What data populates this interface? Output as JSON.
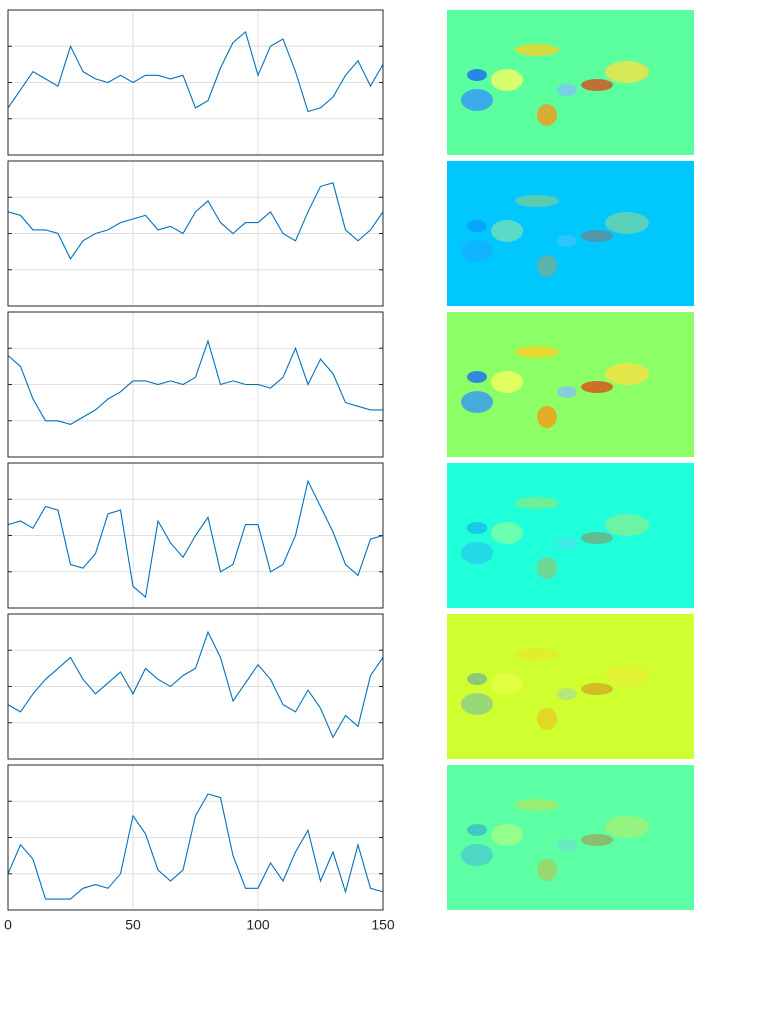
{
  "chart_data": [
    {
      "type": "line",
      "x": [
        0,
        5,
        10,
        15,
        20,
        25,
        30,
        35,
        40,
        45,
        50,
        55,
        60,
        65,
        70,
        75,
        80,
        85,
        90,
        95,
        100,
        105,
        110,
        115,
        120,
        125,
        130,
        135,
        140,
        145,
        150
      ],
      "series": [
        {
          "color": "#0072bd",
          "values": [
            1.3,
            1.8,
            2.3,
            2.1,
            1.9,
            3.0,
            2.3,
            2.1,
            2.0,
            2.2,
            2.0,
            2.2,
            2.2,
            2.1,
            2.2,
            1.3,
            1.5,
            2.4,
            3.1,
            3.4,
            2.2,
            3.0,
            3.2,
            2.3,
            1.2,
            1.3,
            1.6,
            2.2,
            2.6,
            1.9,
            2.5
          ]
        }
      ],
      "xlim": [
        0,
        150
      ],
      "xticks": [
        0,
        50,
        100,
        150
      ],
      "ylim": [
        0,
        4
      ],
      "yticks": [
        1,
        2,
        3
      ],
      "grid": true
    },
    {
      "type": "line",
      "x": [
        0,
        5,
        10,
        15,
        20,
        25,
        30,
        35,
        40,
        45,
        50,
        55,
        60,
        65,
        70,
        75,
        80,
        85,
        90,
        95,
        100,
        105,
        110,
        115,
        120,
        125,
        130,
        135,
        140,
        145,
        150
      ],
      "series": [
        {
          "color": "#0072bd",
          "values": [
            2.6,
            2.5,
            2.1,
            2.1,
            2.0,
            1.3,
            1.8,
            2.0,
            2.1,
            2.3,
            2.4,
            2.5,
            2.1,
            2.2,
            2.0,
            2.6,
            2.9,
            2.3,
            2.0,
            2.3,
            2.3,
            2.6,
            2.0,
            1.8,
            2.6,
            3.3,
            3.4,
            2.1,
            1.8,
            2.1,
            2.6
          ]
        }
      ],
      "xlim": [
        0,
        150
      ],
      "xticks": [
        0,
        50,
        100,
        150
      ],
      "ylim": [
        0,
        4
      ],
      "yticks": [
        1,
        2,
        3
      ],
      "grid": true
    },
    {
      "type": "line",
      "x": [
        0,
        5,
        10,
        15,
        20,
        25,
        30,
        35,
        40,
        45,
        50,
        55,
        60,
        65,
        70,
        75,
        80,
        85,
        90,
        95,
        100,
        105,
        110,
        115,
        120,
        125,
        130,
        135,
        140,
        145,
        150
      ],
      "series": [
        {
          "color": "#0072bd",
          "values": [
            2.8,
            2.5,
            1.6,
            1.0,
            1.0,
            0.9,
            1.1,
            1.3,
            1.6,
            1.8,
            2.1,
            2.1,
            2.0,
            2.1,
            2.0,
            2.2,
            3.2,
            2.0,
            2.1,
            2.0,
            2.0,
            1.9,
            2.2,
            3.0,
            2.0,
            2.7,
            2.3,
            1.5,
            1.4,
            1.3,
            1.3
          ]
        }
      ],
      "xlim": [
        0,
        150
      ],
      "xticks": [
        0,
        50,
        100,
        150
      ],
      "ylim": [
        0,
        4
      ],
      "yticks": [
        1,
        2,
        3
      ],
      "grid": true
    },
    {
      "type": "line",
      "x": [
        0,
        5,
        10,
        15,
        20,
        25,
        30,
        35,
        40,
        45,
        50,
        55,
        60,
        65,
        70,
        75,
        80,
        85,
        90,
        95,
        100,
        105,
        110,
        115,
        120,
        125,
        130,
        135,
        140,
        145,
        150
      ],
      "series": [
        {
          "color": "#0072bd",
          "values": [
            2.3,
            2.4,
            2.2,
            2.8,
            2.7,
            1.2,
            1.1,
            1.5,
            2.6,
            2.7,
            0.6,
            0.3,
            2.4,
            1.8,
            1.4,
            2.0,
            2.5,
            1.0,
            1.2,
            2.3,
            2.3,
            1.0,
            1.2,
            2.0,
            3.5,
            2.8,
            2.1,
            1.2,
            0.9,
            1.9,
            2.0
          ]
        }
      ],
      "xlim": [
        0,
        150
      ],
      "xticks": [
        0,
        50,
        100,
        150
      ],
      "ylim": [
        0,
        4
      ],
      "yticks": [
        1,
        2,
        3
      ],
      "grid": true
    },
    {
      "type": "line",
      "x": [
        0,
        5,
        10,
        15,
        20,
        25,
        30,
        35,
        40,
        45,
        50,
        55,
        60,
        65,
        70,
        75,
        80,
        85,
        90,
        95,
        100,
        105,
        110,
        115,
        120,
        125,
        130,
        135,
        140,
        145,
        150
      ],
      "series": [
        {
          "color": "#0072bd",
          "values": [
            1.5,
            1.3,
            1.8,
            2.2,
            2.5,
            2.8,
            2.2,
            1.8,
            2.1,
            2.4,
            1.8,
            2.5,
            2.2,
            2.0,
            2.3,
            2.5,
            3.5,
            2.8,
            1.6,
            2.1,
            2.6,
            2.2,
            1.5,
            1.3,
            1.9,
            1.4,
            0.6,
            1.2,
            0.9,
            2.3,
            2.8
          ]
        }
      ],
      "xlim": [
        0,
        150
      ],
      "xticks": [
        0,
        50,
        100,
        150
      ],
      "ylim": [
        0,
        4
      ],
      "yticks": [
        1,
        2,
        3
      ],
      "grid": true
    },
    {
      "type": "line",
      "x": [
        0,
        5,
        10,
        15,
        20,
        25,
        30,
        35,
        40,
        45,
        50,
        55,
        60,
        65,
        70,
        75,
        80,
        85,
        90,
        95,
        100,
        105,
        110,
        115,
        120,
        125,
        130,
        135,
        140,
        145,
        150
      ],
      "series": [
        {
          "color": "#0072bd",
          "values": [
            1.0,
            1.8,
            1.4,
            0.3,
            0.3,
            0.3,
            0.6,
            0.7,
            0.6,
            1.0,
            2.6,
            2.1,
            1.1,
            0.8,
            1.1,
            2.6,
            3.2,
            3.1,
            1.5,
            0.6,
            0.6,
            1.3,
            0.8,
            1.6,
            2.2,
            0.8,
            1.6,
            0.5,
            1.8,
            0.6,
            0.5
          ]
        }
      ],
      "xlim": [
        0,
        150
      ],
      "xticks": [
        0,
        50,
        100,
        150
      ],
      "ylim": [
        0,
        4
      ],
      "yticks": [
        1,
        2,
        3
      ],
      "grid": true
    }
  ]
}
